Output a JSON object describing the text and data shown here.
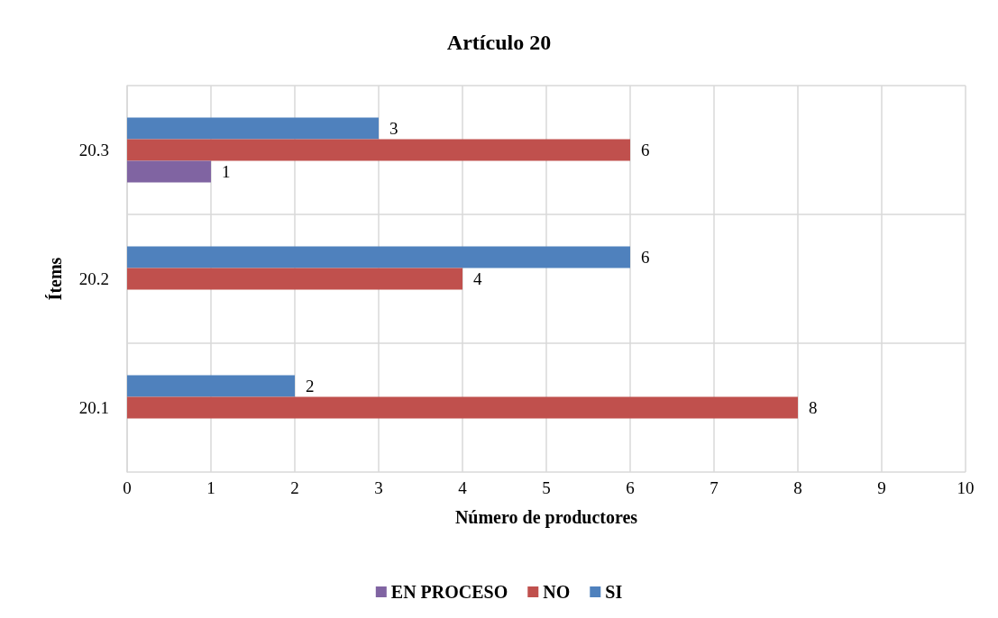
{
  "chart_data": {
    "type": "bar",
    "orientation": "horizontal",
    "title": "Artículo 20",
    "xlabel": "Número de productores",
    "ylabel": "Ítems",
    "categories": [
      "20.3",
      "20.2",
      "20.1"
    ],
    "series": [
      {
        "name": "SI",
        "color": "#4f81bd",
        "values": [
          3,
          6,
          2
        ]
      },
      {
        "name": "NO",
        "color": "#c0504d",
        "values": [
          6,
          4,
          8
        ]
      },
      {
        "name": "EN PROCESO",
        "color": "#8064a2",
        "values": [
          1,
          null,
          null
        ]
      }
    ],
    "xlim": [
      0,
      10
    ],
    "xticks": [
      0,
      1,
      2,
      3,
      4,
      5,
      6,
      7,
      8,
      9,
      10
    ],
    "grid": true,
    "legend": "bottom",
    "data_labels": true
  }
}
